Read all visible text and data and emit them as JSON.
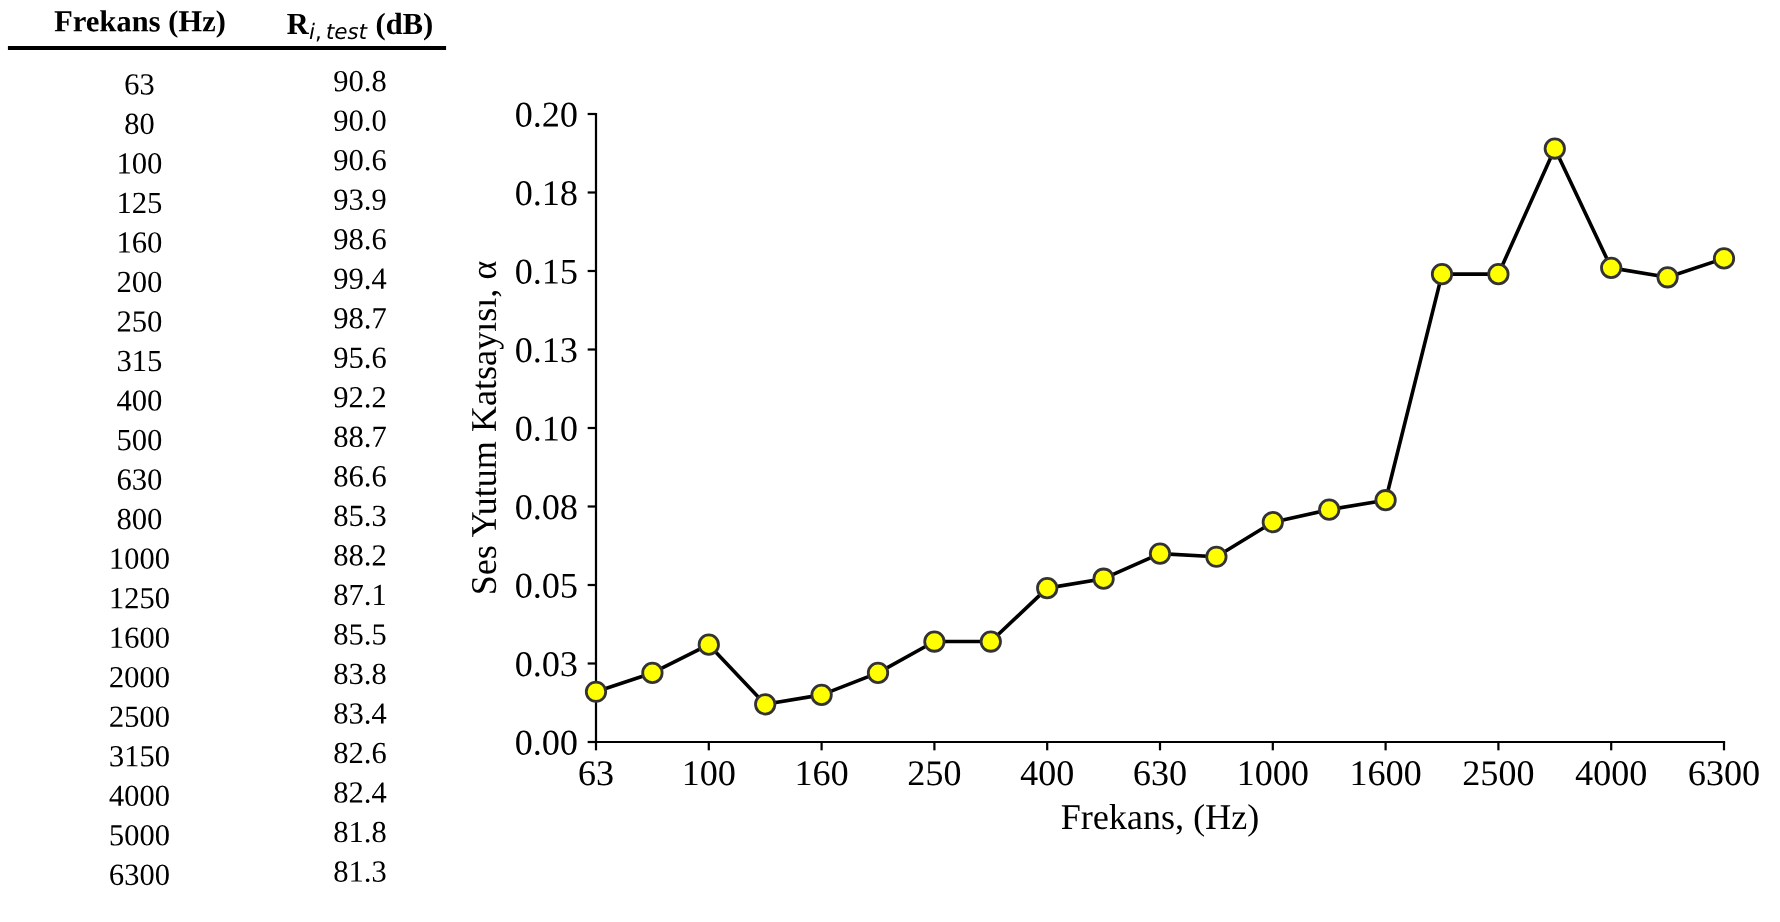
{
  "chart_data": [
    {
      "type": "heatmap",
      "ylabel": "Frekans (Hz)",
      "data_labels": true,
      "categories": [
        "R$_{i,test}$ (dB)"
      ],
      "y_categories": [
        "63",
        "80",
        "100",
        "125",
        "160",
        "200",
        "250",
        "315",
        "400",
        "500",
        "630",
        "800",
        "1000",
        "1250",
        "1600",
        "2000",
        "2500",
        "3150",
        "4000",
        "5000",
        "6300"
      ],
      "cells": [
        [
          90.8
        ],
        [
          90.0
        ],
        [
          90.6
        ],
        [
          93.9
        ],
        [
          98.6
        ],
        [
          99.4
        ],
        [
          98.7
        ],
        [
          95.6
        ],
        [
          92.2
        ],
        [
          88.7
        ],
        [
          86.6
        ],
        [
          85.3
        ],
        [
          88.2
        ],
        [
          87.1
        ],
        [
          85.5
        ],
        [
          83.8
        ],
        [
          83.4
        ],
        [
          82.6
        ],
        [
          82.4
        ],
        [
          81.8
        ],
        [
          81.3
        ]
      ],
      "cell_labels": [
        [
          "90.8"
        ],
        [
          "90.0"
        ],
        [
          "90.6"
        ],
        [
          "93.9"
        ],
        [
          "98.6"
        ],
        [
          "99.4"
        ],
        [
          "98.7"
        ],
        [
          "95.6"
        ],
        [
          "92.2"
        ],
        [
          "88.7"
        ],
        [
          "86.6"
        ],
        [
          "85.3"
        ],
        [
          "88.2"
        ],
        [
          "87.1"
        ],
        [
          "85.5"
        ],
        [
          "83.8"
        ],
        [
          "83.4"
        ],
        [
          "82.6"
        ],
        [
          "82.4"
        ],
        [
          "81.8"
        ],
        [
          "81.3"
        ]
      ]
    },
    {
      "type": "line",
      "xlabel": "Frekans, (Hz)",
      "ylabel": "Ses Yutum Katsayısı, α",
      "categories": [
        "63",
        null,
        "100",
        null,
        "160",
        null,
        "250",
        null,
        "400",
        null,
        "630",
        null,
        "1000",
        null,
        "1600",
        null,
        "2500",
        null,
        "4000",
        null,
        "6300"
      ],
      "series": [
        {
          "color": "#ffff00",
          "values": [
            0.016,
            0.022,
            0.031,
            0.012,
            0.015,
            0.022,
            0.032,
            0.032,
            0.049,
            0.052,
            0.06,
            0.059,
            0.07,
            0.074,
            0.077,
            0.149,
            0.149,
            0.189,
            0.151,
            0.148,
            0.154
          ]
        }
      ],
      "ylim": [
        0,
        0.2
      ],
      "yticks": [
        {
          "value": 0,
          "label": "0.00"
        },
        {
          "value": 0.025,
          "label": "0.03"
        },
        {
          "value": 0.05,
          "label": "0.05"
        },
        {
          "value": 0.075,
          "label": "0.08"
        },
        {
          "value": 0.1,
          "label": "0.10"
        },
        {
          "value": 0.125,
          "label": "0.13"
        },
        {
          "value": 0.15,
          "label": "0.15"
        },
        {
          "value": 0.175,
          "label": "0.18"
        },
        {
          "value": 0.2,
          "label": "0.20"
        }
      ],
      "marker": "circle",
      "line_style": "solid"
    }
  ]
}
